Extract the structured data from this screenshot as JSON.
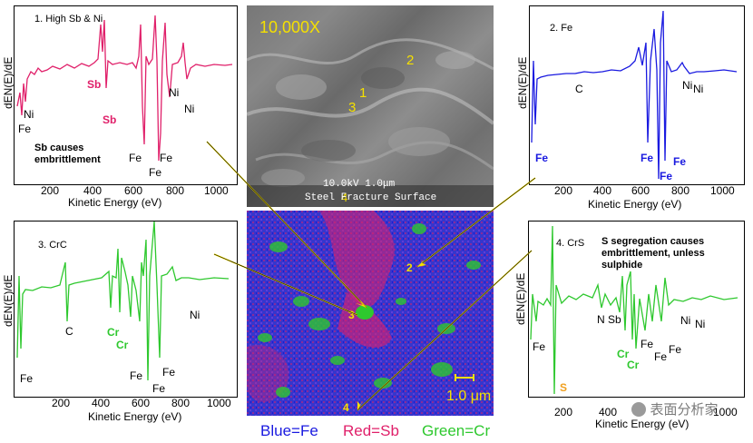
{
  "colors": {
    "pink": "#e0206a",
    "blue": "#1a1ae0",
    "green": "#2ec82e",
    "orange": "#f0a020",
    "yellow": "#f5e000"
  },
  "common": {
    "ylabel": "dEN(E)/dE",
    "xlabel": "Kinetic Energy (eV)"
  },
  "sem": {
    "magnification": "10,000X",
    "info": "10.0kV      1.0μm",
    "caption": "Steel Fracture Surface",
    "points": [
      "1",
      "2",
      "3",
      "4"
    ]
  },
  "map": {
    "scale": "1.0 μm",
    "points": [
      "2",
      "3",
      "4"
    ]
  },
  "legend": {
    "blue": "Blue=Fe",
    "red": "Red=Sb",
    "green": "Green=Cr"
  },
  "watermark": "表面分析家",
  "panels": [
    {
      "title": "1. High Sb & Ni",
      "note": "Sb causes embrittlement",
      "ticks": [
        "200",
        "400",
        "600",
        "800",
        "1000"
      ],
      "labels": [
        "Ni",
        "Fe",
        "Sb",
        "Sb",
        "Fe",
        "Fe",
        "Fe",
        "Ni",
        "Ni"
      ]
    },
    {
      "title": "2. Fe",
      "note": "",
      "ticks": [
        "200",
        "400",
        "600",
        "800",
        "1000"
      ],
      "labels": [
        "C",
        "Fe",
        "Fe",
        "Fe",
        "Fe",
        "Ni",
        "Ni"
      ]
    },
    {
      "title": "3. CrC",
      "note": "",
      "ticks": [
        "200",
        "400",
        "600",
        "800",
        "1000"
      ],
      "labels": [
        "C",
        "Fe",
        "Cr",
        "Cr",
        "Fe",
        "Fe",
        "Fe",
        "Ni"
      ]
    },
    {
      "title": "4. CrS",
      "note": "S segregation causes embrittlement, unless sulphide",
      "ticks": [
        "200",
        "400",
        "1000"
      ],
      "labels": [
        "Fe",
        "S",
        "N",
        "Sb",
        "Cr",
        "Cr",
        "Fe",
        "Fe",
        "Fe",
        "Ni",
        "Ni"
      ]
    }
  ]
}
